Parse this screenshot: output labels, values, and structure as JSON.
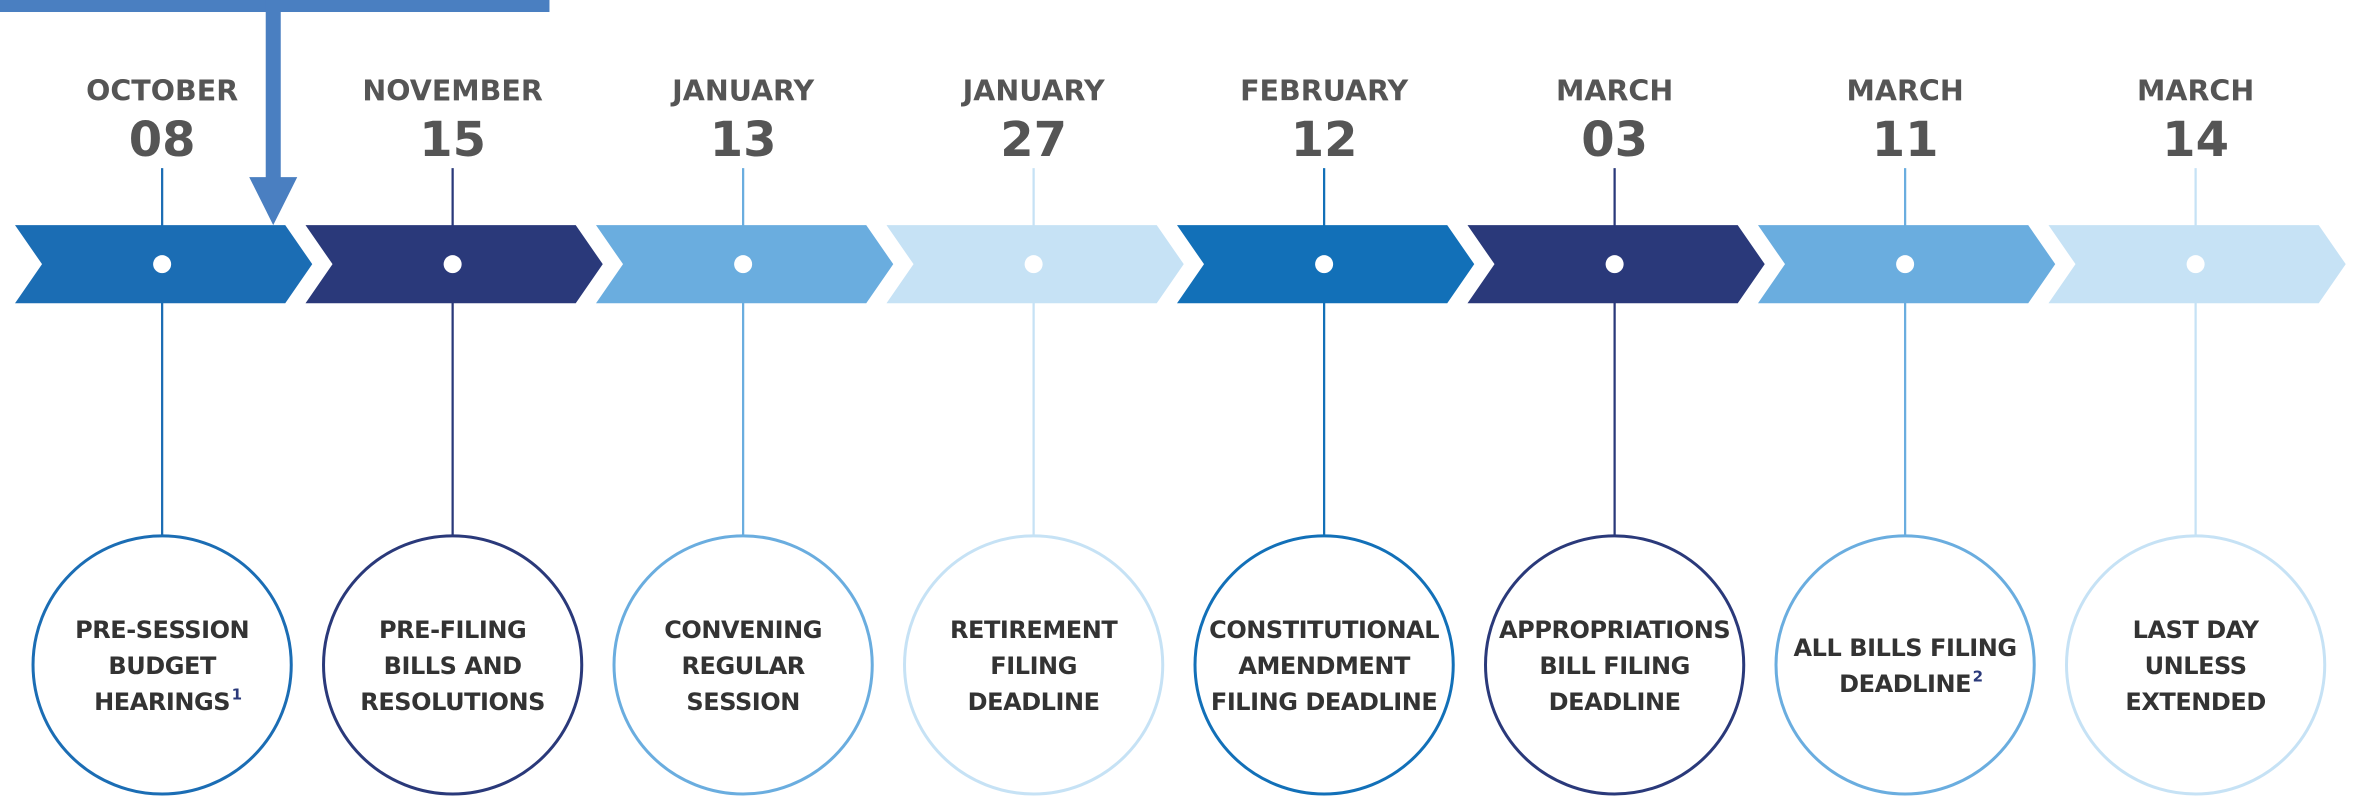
{
  "items": [
    {
      "month": "OCTOBER",
      "day": "08",
      "lines": [
        "PRE-SESSION",
        "BUDGET",
        "HEARINGS"
      ],
      "note": "1",
      "color": "#1b6db4"
    },
    {
      "month": "NOVEMBER",
      "day": "15",
      "lines": [
        "PRE-FILING",
        "BILLS AND",
        "RESOLUTIONS"
      ],
      "color": "#2a397a"
    },
    {
      "month": "JANUARY",
      "day": "13",
      "lines": [
        "CONVENING",
        "REGULAR",
        "SESSION"
      ],
      "color": "#6aaddf"
    },
    {
      "month": "JANUARY",
      "day": "27",
      "lines": [
        "RETIREMENT",
        "FILING",
        "DEADLINE"
      ],
      "color": "#c6e2f5"
    },
    {
      "month": "FEBRUARY",
      "day": "12",
      "lines": [
        "CONSTITUTIONAL",
        "AMENDMENT",
        "FILING DEADLINE"
      ],
      "color": "#1270b8"
    },
    {
      "month": "MARCH",
      "day": "03",
      "lines": [
        "APPROPRIATIONS",
        "BILL FILING",
        "DEADLINE"
      ],
      "color": "#2a397a"
    },
    {
      "month": "MARCH",
      "day": "11",
      "lines": [
        "ALL BILLS FILING",
        "DEADLINE"
      ],
      "note": "2",
      "color": "#6aaddf"
    },
    {
      "month": "MARCH",
      "day": "14",
      "lines": [
        "LAST DAY",
        "UNLESS",
        "EXTENDED"
      ],
      "color": "#c6e2f5"
    }
  ]
}
